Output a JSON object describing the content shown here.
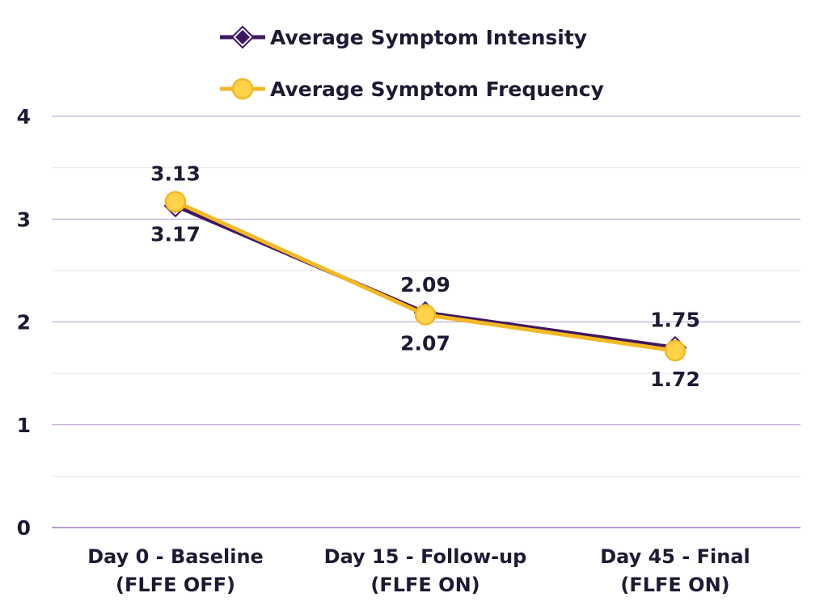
{
  "chart_data": {
    "type": "line",
    "categories": [
      [
        "Day 0 - Baseline",
        "(FLFE OFF)"
      ],
      [
        "Day 15 - Follow-up",
        "(FLFE ON)"
      ],
      [
        "Day 45 - Final",
        "(FLFE ON)"
      ]
    ],
    "series": [
      {
        "name": "Average Symptom Intensity",
        "values": [
          3.13,
          2.09,
          1.75
        ],
        "labels": [
          "3.13",
          "2.09",
          "1.75"
        ],
        "color": "#3f1760",
        "marker": "diamond",
        "label_position": "above"
      },
      {
        "name": "Average Symptom Frequency",
        "values": [
          3.17,
          2.07,
          1.72
        ],
        "labels": [
          "3.17",
          "2.07",
          "1.72"
        ],
        "color": "#f2b825",
        "marker": "circle",
        "label_position": "below"
      }
    ],
    "yticks": [
      "0",
      "1",
      "2",
      "3",
      "4"
    ],
    "ylim": [
      0,
      4
    ],
    "grid": true,
    "grid_color": "#b79bd3",
    "minor_grid_color": "#e6e6ea",
    "legend_position": "top-center",
    "title": "",
    "xlabel": "",
    "ylabel": ""
  }
}
